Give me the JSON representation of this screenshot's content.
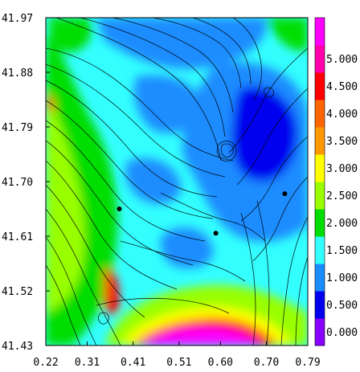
{
  "chart_data": {
    "type": "heatmap",
    "title": "",
    "xlabel": "",
    "ylabel": "",
    "xlim": [
      0.22,
      0.79
    ],
    "ylim": [
      41.43,
      41.97
    ],
    "x_ticks": [
      "0.22",
      "0.31",
      "0.41",
      "0.51",
      "0.60",
      "0.70",
      "0.79"
    ],
    "y_ticks": [
      "41.97",
      "41.88",
      "41.79",
      "41.70",
      "41.61",
      "41.52",
      "41.43"
    ],
    "colorbar": {
      "labels": [
        "0.000",
        "0.500",
        "1.000",
        "1.500",
        "2.000",
        "2.500",
        "3.000",
        "3.500",
        "4.000",
        "4.500",
        "5.000"
      ],
      "colors": [
        "#8800ff",
        "#0000ee",
        "#1a8cff",
        "#33ffff",
        "#00dd00",
        "#99ff00",
        "#ffff00",
        "#ff9900",
        "#ff6600",
        "#ff0000",
        "#ff00aa",
        "#ff00ff"
      ],
      "range": [
        0,
        5.5
      ]
    },
    "markers": [
      {
        "x": 0.38,
        "y": 41.655
      },
      {
        "x": 0.59,
        "y": 41.615
      },
      {
        "x": 0.74,
        "y": 41.68
      }
    ],
    "field_description": "speed magnitude contour field with overlaid streamlines; high values (red/magenta) along bottom edge near x 0.41-0.70, low values (blue) in upper-right region"
  }
}
